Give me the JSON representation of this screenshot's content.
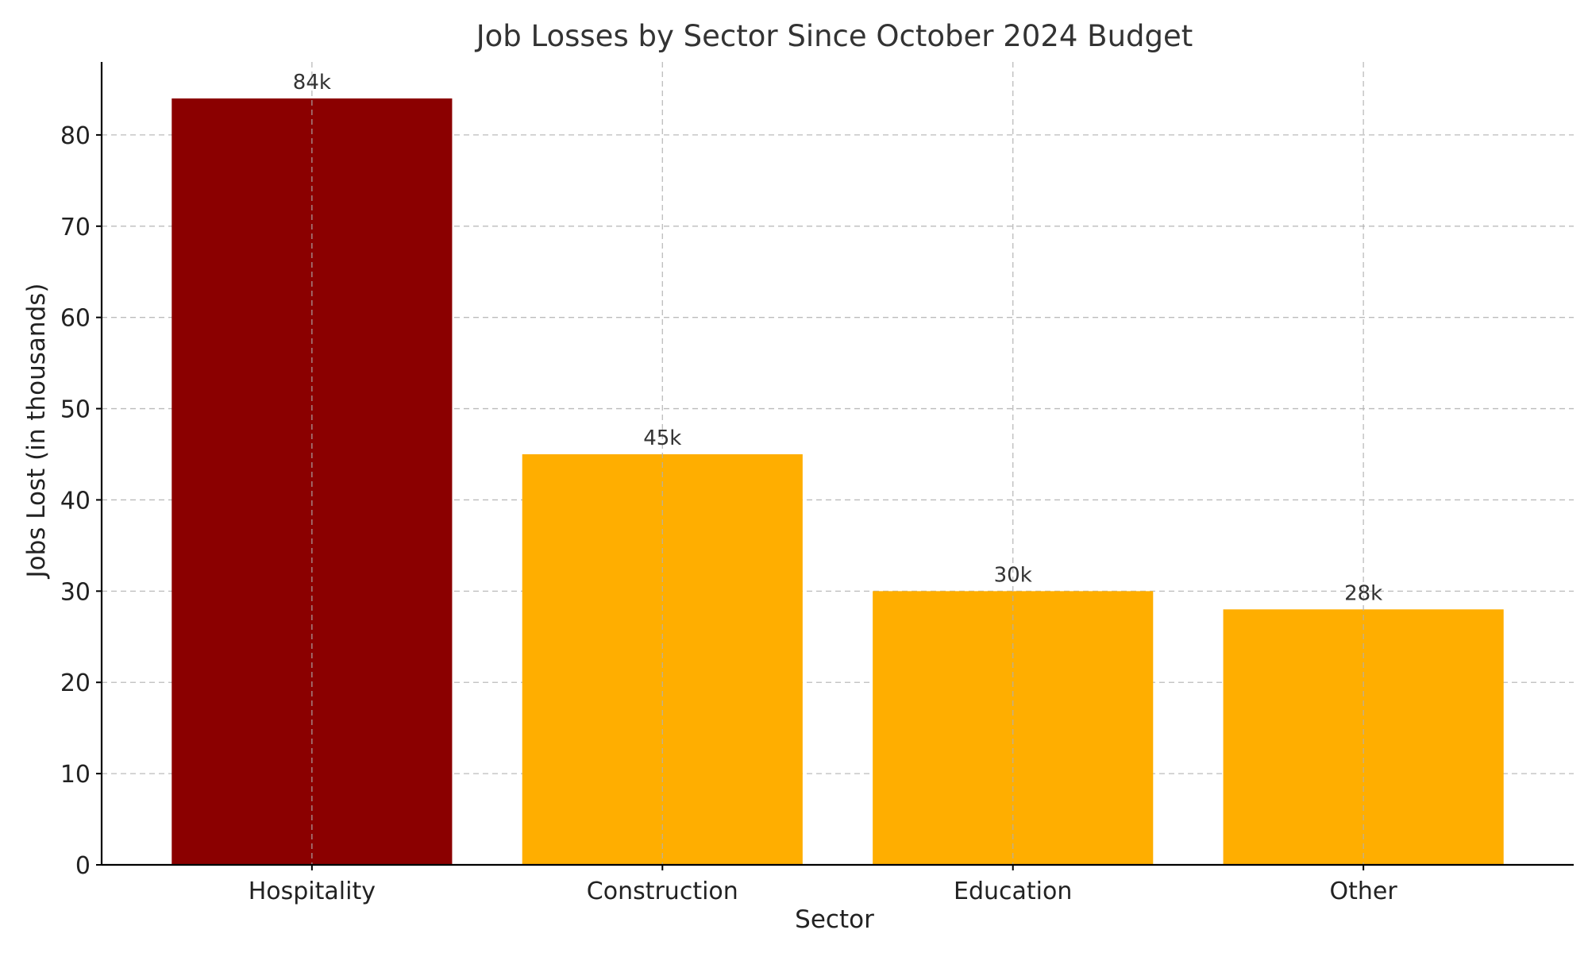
{
  "chart_data": {
    "type": "bar",
    "title": "Job Losses by Sector Since October 2024 Budget",
    "xlabel": "Sector",
    "ylabel": "Jobs Lost (in thousands)",
    "categories": [
      "Hospitality",
      "Construction",
      "Education",
      "Other"
    ],
    "values": [
      84,
      45,
      30,
      28
    ],
    "data_labels": [
      "84k",
      "45k",
      "30k",
      "28k"
    ],
    "colors": [
      "#8b0000",
      "#ffae00",
      "#ffae00",
      "#ffae00"
    ],
    "ylim": [
      0,
      88
    ],
    "yticks": [
      0,
      10,
      20,
      30,
      40,
      50,
      60,
      70,
      80
    ],
    "grid": true
  }
}
